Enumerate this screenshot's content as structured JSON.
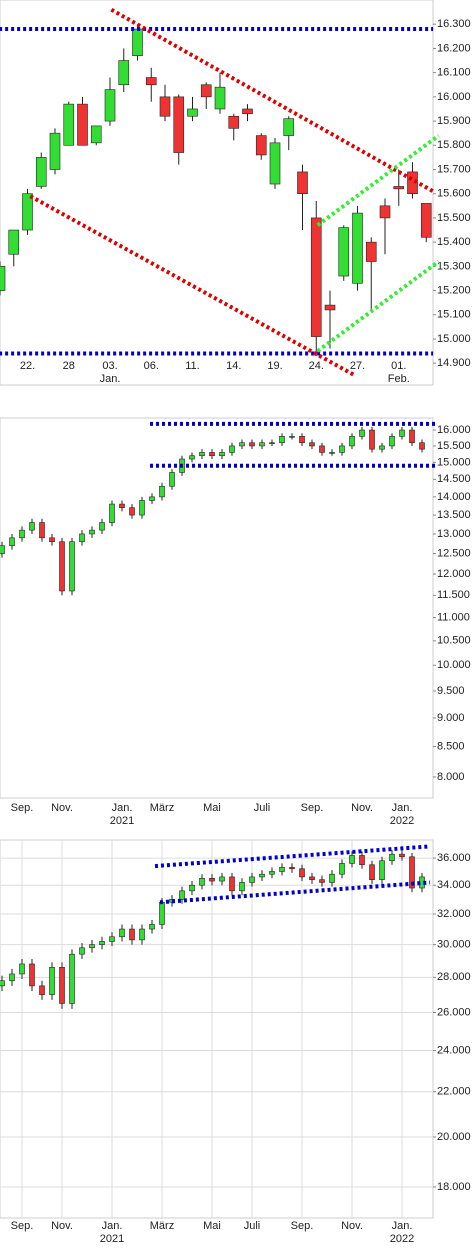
{
  "chart_data": [
    {
      "type": "candlestick",
      "log_scale": false,
      "grid": false,
      "up_color": "#33dd33",
      "down_color": "#ee3333",
      "categories": [
        null,
        null,
        "22.",
        null,
        null,
        "28",
        null,
        null,
        "03.",
        null,
        null,
        "06.",
        null,
        null,
        "11.",
        null,
        null,
        "14.",
        null,
        null,
        "19.",
        null,
        null,
        "24.",
        null,
        null,
        "27.",
        null,
        null,
        "01.",
        null,
        null
      ],
      "subcategories": [
        null,
        null,
        null,
        null,
        null,
        null,
        null,
        null,
        "Jan.",
        null,
        null,
        null,
        null,
        null,
        null,
        null,
        null,
        null,
        null,
        null,
        null,
        null,
        null,
        null,
        null,
        null,
        null,
        null,
        null,
        "Feb.",
        null,
        null
      ],
      "open": [
        15.2,
        15.35,
        15.45,
        15.63,
        15.7,
        15.8,
        15.97,
        15.81,
        15.9,
        16.05,
        16.17,
        16.08,
        16.0,
        16.0,
        15.92,
        16.05,
        15.95,
        15.92,
        15.95,
        15.84,
        15.64,
        15.84,
        15.69,
        15.5,
        15.14,
        15.26,
        15.23,
        15.4,
        15.55,
        15.63,
        15.69,
        15.56
      ],
      "high": [
        15.32,
        15.45,
        15.62,
        15.77,
        15.87,
        15.98,
        16.0,
        15.88,
        16.08,
        16.2,
        16.3,
        16.12,
        16.05,
        16.01,
        16.0,
        16.06,
        16.1,
        15.93,
        15.97,
        15.85,
        15.83,
        15.92,
        15.72,
        15.57,
        15.2,
        15.47,
        15.55,
        15.42,
        15.58,
        15.7,
        15.73,
        15.56
      ],
      "low": [
        15.18,
        15.3,
        15.43,
        15.62,
        15.68,
        15.8,
        15.8,
        15.8,
        15.88,
        16.02,
        16.15,
        15.98,
        15.9,
        15.72,
        15.9,
        15.95,
        15.93,
        15.82,
        15.9,
        15.74,
        15.62,
        15.78,
        15.45,
        14.93,
        14.96,
        15.24,
        15.2,
        15.12,
        15.35,
        15.55,
        15.58,
        15.4
      ],
      "close": [
        15.3,
        15.45,
        15.6,
        15.75,
        15.85,
        15.97,
        15.8,
        15.88,
        16.03,
        16.15,
        16.28,
        16.05,
        15.92,
        15.77,
        15.95,
        16.0,
        16.04,
        15.87,
        15.93,
        15.76,
        15.81,
        15.91,
        15.6,
        15.01,
        15.12,
        15.46,
        15.52,
        15.32,
        15.5,
        15.62,
        15.6,
        15.42
      ],
      "ylim": [
        14.81,
        16.4
      ],
      "yticks": [
        {
          "value": 14.9,
          "label": "14.900"
        },
        {
          "value": 15.0,
          "label": "15.000"
        },
        {
          "value": 15.1,
          "label": "15.100"
        },
        {
          "value": 15.2,
          "label": "15.200"
        },
        {
          "value": 15.3,
          "label": "15.300"
        },
        {
          "value": 15.4,
          "label": "15.400"
        },
        {
          "value": 15.5,
          "label": "15.500"
        },
        {
          "value": 15.6,
          "label": "15.600"
        },
        {
          "value": 15.7,
          "label": "15.700"
        },
        {
          "value": 15.8,
          "label": "15.800"
        },
        {
          "value": 15.9,
          "label": "15.900"
        },
        {
          "value": 16.0,
          "label": "16.000"
        },
        {
          "value": 16.1,
          "label": "16.100"
        },
        {
          "value": 16.2,
          "label": "16.200"
        },
        {
          "value": 16.3,
          "label": "16.300"
        }
      ],
      "trendlines": [
        {
          "color": "#0000cc",
          "x": [
            -0.5,
            31.5
          ],
          "y": [
            16.28,
            16.28
          ]
        },
        {
          "color": "#0000cc",
          "x": [
            -0.5,
            31.5
          ],
          "y": [
            14.94,
            14.94
          ]
        },
        {
          "color": "#dd0000",
          "x": [
            8.1,
            31.5
          ],
          "y": [
            16.36,
            15.61
          ]
        },
        {
          "color": "#dd0000",
          "x": [
            2.2,
            25.8
          ],
          "y": [
            15.59,
            14.85
          ]
        },
        {
          "color": "#33ee33",
          "x": [
            23.1,
            31.9
          ],
          "y": [
            15.47,
            15.84
          ]
        },
        {
          "color": "#33ee33",
          "x": [
            23.1,
            31.9
          ],
          "y": [
            14.95,
            15.32
          ]
        }
      ]
    },
    {
      "type": "candlestick",
      "log_scale": true,
      "grid": false,
      "up_color": "#33dd33",
      "down_color": "#ee3333",
      "categories": [
        null,
        null,
        "Sep.",
        null,
        null,
        null,
        "Nov.",
        null,
        null,
        null,
        null,
        null,
        "Jan.",
        null,
        null,
        null,
        "März",
        null,
        null,
        null,
        null,
        "Mai",
        null,
        null,
        null,
        null,
        "Juli",
        null,
        null,
        null,
        null,
        "Sep.",
        null,
        null,
        null,
        null,
        "Nov.",
        null,
        null,
        null,
        "Jan.",
        null,
        null
      ],
      "subcategories": [
        null,
        null,
        null,
        null,
        null,
        null,
        null,
        null,
        null,
        null,
        null,
        null,
        "2021",
        null,
        null,
        null,
        null,
        null,
        null,
        null,
        null,
        null,
        null,
        null,
        null,
        null,
        null,
        null,
        null,
        null,
        null,
        null,
        null,
        null,
        null,
        null,
        null,
        null,
        null,
        null,
        "2022",
        null,
        null
      ],
      "open": [
        12.5,
        12.7,
        12.9,
        13.1,
        13.3,
        12.9,
        12.8,
        11.6,
        12.8,
        13.0,
        13.1,
        13.3,
        13.8,
        13.7,
        13.5,
        13.9,
        14.0,
        14.3,
        14.7,
        15.1,
        15.2,
        15.3,
        15.2,
        15.3,
        15.5,
        15.6,
        15.5,
        15.6,
        15.6,
        15.8,
        15.8,
        15.6,
        15.5,
        15.3,
        15.3,
        15.5,
        15.8,
        16.0,
        15.4,
        15.5,
        15.8,
        16.0,
        15.6
      ],
      "high": [
        12.8,
        13.0,
        13.2,
        13.4,
        13.4,
        13.0,
        12.9,
        12.9,
        13.1,
        13.2,
        13.4,
        13.9,
        13.9,
        13.8,
        14.0,
        14.1,
        14.4,
        14.8,
        15.2,
        15.3,
        15.4,
        15.4,
        15.4,
        15.6,
        15.7,
        15.7,
        15.7,
        15.7,
        15.9,
        15.9,
        15.9,
        15.7,
        15.6,
        15.4,
        15.6,
        15.9,
        16.1,
        16.1,
        15.6,
        15.9,
        16.1,
        16.1,
        15.7
      ],
      "low": [
        12.4,
        12.6,
        12.8,
        13.0,
        12.8,
        12.7,
        11.5,
        11.5,
        12.7,
        12.9,
        13.0,
        13.2,
        13.6,
        13.4,
        13.4,
        13.8,
        13.9,
        14.2,
        14.6,
        15.0,
        15.1,
        15.1,
        15.1,
        15.2,
        15.4,
        15.4,
        15.4,
        15.5,
        15.5,
        15.7,
        15.5,
        15.4,
        15.2,
        15.2,
        15.2,
        15.4,
        15.7,
        15.3,
        15.3,
        15.4,
        15.7,
        15.5,
        15.3
      ],
      "close": [
        12.7,
        12.9,
        13.1,
        13.3,
        12.9,
        12.8,
        11.6,
        12.8,
        13.0,
        13.1,
        13.3,
        13.8,
        13.7,
        13.5,
        13.9,
        14.0,
        14.3,
        14.7,
        15.1,
        15.2,
        15.3,
        15.2,
        15.3,
        15.5,
        15.6,
        15.5,
        15.6,
        15.6,
        15.8,
        15.8,
        15.6,
        15.5,
        15.3,
        15.3,
        15.5,
        15.8,
        16.0,
        15.4,
        15.5,
        15.8,
        16.0,
        15.6,
        15.4
      ],
      "ylim": [
        7.67,
        16.39
      ],
      "yticks": [
        {
          "value": 8,
          "label": "8.000"
        },
        {
          "value": 8.5,
          "label": "8.500"
        },
        {
          "value": 9,
          "label": "9.000"
        },
        {
          "value": 9.5,
          "label": "9.500"
        },
        {
          "value": 10,
          "label": "10.000"
        },
        {
          "value": 10.5,
          "label": "10.500"
        },
        {
          "value": 11,
          "label": "11.000"
        },
        {
          "value": 11.5,
          "label": "11.500"
        },
        {
          "value": 12,
          "label": "12.000"
        },
        {
          "value": 12.5,
          "label": "12.500"
        },
        {
          "value": 13,
          "label": "13.000"
        },
        {
          "value": 13.5,
          "label": "13.500"
        },
        {
          "value": 14,
          "label": "14.000"
        },
        {
          "value": 14.5,
          "label": "14.500"
        },
        {
          "value": 15,
          "label": "15.000"
        },
        {
          "value": 15.5,
          "label": "15.500"
        },
        {
          "value": 16,
          "label": "16.000"
        }
      ],
      "trendlines": [
        {
          "color": "#0000cc",
          "x": [
            14.8,
            43.3
          ],
          "y": [
            16.2,
            16.2
          ]
        },
        {
          "color": "#0000cc",
          "x": [
            14.8,
            43.3
          ],
          "y": [
            14.9,
            14.9
          ]
        }
      ]
    },
    {
      "type": "candlestick",
      "log_scale": true,
      "grid": true,
      "up_color": "#33dd33",
      "down_color": "#ee3333",
      "categories": [
        null,
        null,
        "Sep.",
        null,
        null,
        null,
        "Nov.",
        null,
        null,
        null,
        null,
        "Jan.",
        null,
        null,
        null,
        null,
        "März",
        null,
        null,
        null,
        null,
        "Mai",
        null,
        null,
        null,
        "Juli",
        null,
        null,
        null,
        null,
        "Sep.",
        null,
        null,
        null,
        null,
        "Nov.",
        null,
        null,
        null,
        null,
        "Jan.",
        null,
        null
      ],
      "subcategories": [
        null,
        null,
        null,
        null,
        null,
        null,
        null,
        null,
        null,
        null,
        null,
        "2021",
        null,
        null,
        null,
        null,
        null,
        null,
        null,
        null,
        null,
        null,
        null,
        null,
        null,
        null,
        null,
        null,
        null,
        null,
        null,
        null,
        null,
        null,
        null,
        null,
        null,
        null,
        null,
        null,
        "2022",
        null,
        null
      ],
      "open": [
        27.5,
        27.8,
        28.2,
        28.8,
        27.5,
        27.0,
        28.6,
        26.5,
        29.4,
        29.8,
        30.0,
        30.2,
        30.5,
        31.0,
        30.3,
        31.0,
        31.3,
        32.8,
        33.0,
        33.6,
        34.0,
        34.5,
        34.3,
        34.6,
        33.6,
        34.2,
        34.6,
        34.8,
        35.0,
        35.3,
        35.2,
        34.6,
        34.4,
        34.2,
        34.8,
        35.6,
        36.2,
        35.5,
        34.4,
        35.8,
        36.3,
        36.1,
        33.8
      ],
      "high": [
        28.1,
        28.5,
        29.1,
        29.1,
        27.8,
        28.9,
        28.9,
        29.7,
        30.1,
        30.3,
        30.5,
        30.8,
        31.3,
        31.3,
        31.3,
        31.6,
        33.1,
        33.3,
        33.9,
        34.3,
        34.8,
        34.8,
        34.9,
        34.9,
        34.5,
        34.9,
        35.1,
        35.3,
        35.6,
        35.6,
        35.5,
        34.9,
        34.7,
        35.1,
        35.9,
        36.5,
        36.5,
        35.8,
        36.1,
        36.6,
        36.6,
        36.4,
        34.9
      ],
      "low": [
        27.2,
        27.5,
        27.9,
        27.2,
        26.7,
        26.7,
        26.2,
        26.2,
        29.1,
        29.5,
        29.7,
        29.9,
        30.2,
        30.0,
        30.0,
        30.7,
        31.0,
        32.5,
        32.7,
        33.3,
        33.7,
        34.0,
        34.0,
        33.3,
        33.3,
        33.9,
        34.3,
        34.5,
        34.7,
        34.9,
        34.3,
        34.1,
        33.9,
        33.9,
        34.5,
        35.3,
        35.2,
        34.1,
        34.1,
        35.5,
        35.8,
        33.5,
        33.5
      ],
      "close": [
        27.8,
        28.2,
        28.8,
        27.5,
        27.0,
        28.6,
        26.5,
        29.4,
        29.8,
        30.0,
        30.2,
        30.5,
        31.0,
        30.3,
        31.0,
        31.3,
        32.8,
        33.0,
        33.6,
        34.0,
        34.5,
        34.3,
        34.6,
        33.6,
        34.2,
        34.6,
        34.8,
        35.0,
        35.3,
        35.2,
        34.6,
        34.4,
        34.2,
        34.8,
        35.6,
        36.2,
        35.5,
        34.4,
        35.8,
        36.3,
        36.1,
        33.8,
        34.6
      ],
      "ylim": [
        16.86,
        37.4
      ],
      "yticks": [
        {
          "value": 18,
          "label": "18.000"
        },
        {
          "value": 20,
          "label": "20.000"
        },
        {
          "value": 22,
          "label": "22.000"
        },
        {
          "value": 24,
          "label": "24.000"
        },
        {
          "value": 26,
          "label": "26.000"
        },
        {
          "value": 28,
          "label": "28.000"
        },
        {
          "value": 30,
          "label": "30.000"
        },
        {
          "value": 32,
          "label": "32.000"
        },
        {
          "value": 34,
          "label": "34.000"
        },
        {
          "value": 36,
          "label": "36.000"
        }
      ],
      "trendlines": [
        {
          "color": "#0000cc",
          "x": [
            15.3,
            42.8
          ],
          "y": [
            35.4,
            36.9
          ]
        },
        {
          "color": "#0000cc",
          "x": [
            15.8,
            42.8
          ],
          "y": [
            32.8,
            34.2
          ]
        }
      ]
    }
  ]
}
